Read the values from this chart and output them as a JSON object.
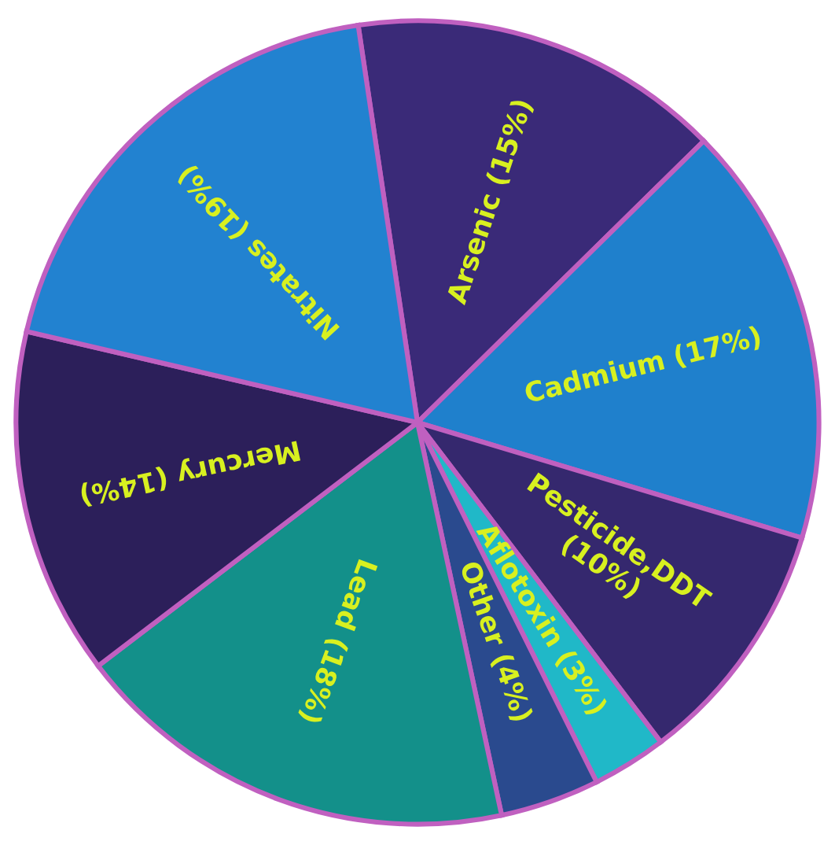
{
  "chart_data": {
    "type": "pie",
    "categories": [
      "Arsenic",
      "Cadmium",
      "Pesticide,DDT",
      "Aflotoxin",
      "Other",
      "Lead",
      "Mercury",
      "Nitrates"
    ],
    "values": [
      15,
      17,
      10,
      3,
      4,
      18,
      14,
      19
    ],
    "value_labels": [
      "(15%)",
      "(17%)",
      "(10%)",
      "(3%)",
      "(4%)",
      "(18%)",
      "(14%)",
      "(19%)"
    ],
    "colors": [
      "#3a2a78",
      "#1f80cc",
      "#35286e",
      "#20b8c8",
      "#2a4a8e",
      "#13908a",
      "#2c1f5a",
      "#2282d0"
    ]
  }
}
